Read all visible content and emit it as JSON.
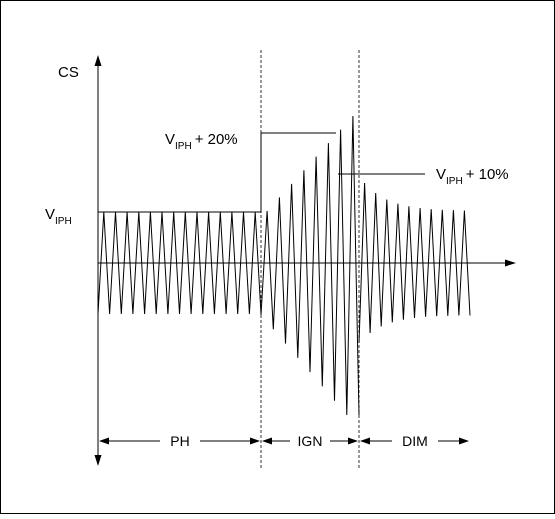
{
  "diagram": {
    "y_axis_label": "CS",
    "level_label": {
      "main": "V",
      "sub": "IPH"
    },
    "annotation_upper": {
      "main": "V",
      "sub": "IPH",
      "suffix": "+ 20%"
    },
    "annotation_lower": {
      "main": "V",
      "sub": "IPH",
      "suffix": "+ 10%"
    },
    "phases": [
      {
        "label": "PH"
      },
      {
        "label": "IGN"
      },
      {
        "label": "DIM"
      }
    ],
    "colors": {
      "line": "#000000",
      "background": "#ffffff",
      "border": "#000000"
    }
  }
}
